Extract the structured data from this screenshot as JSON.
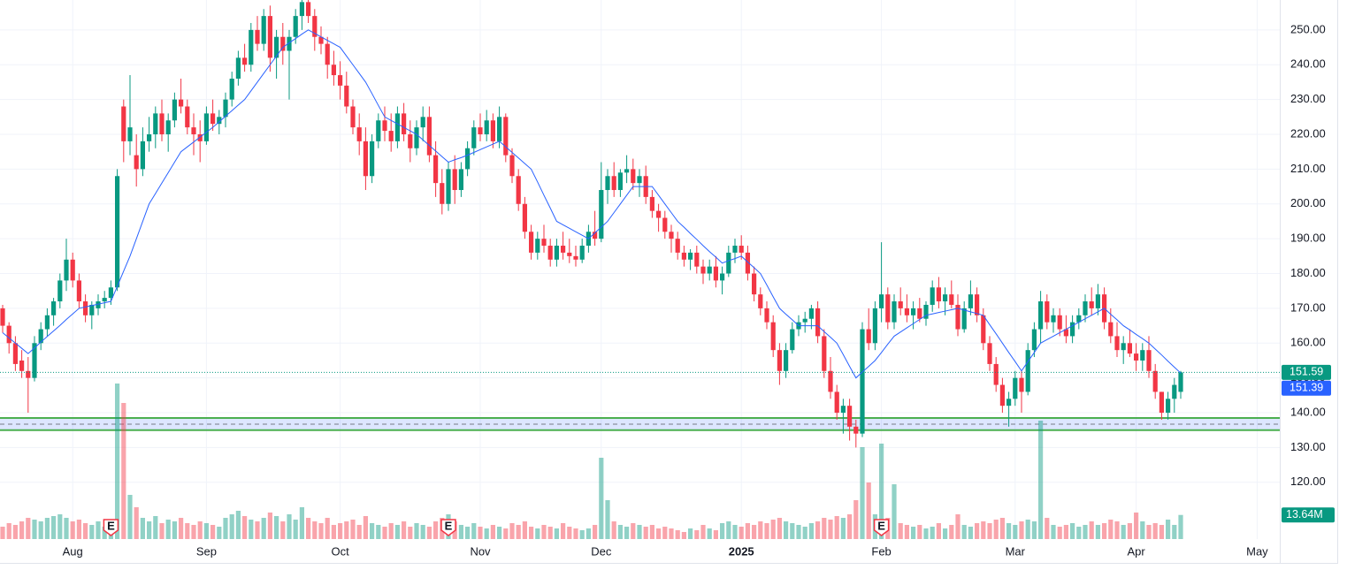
{
  "chart_data": {
    "type": "candlestick",
    "categories": [
      null,
      null,
      null,
      null,
      null,
      null,
      null,
      null,
      null,
      null,
      null,
      "Aug",
      null,
      null,
      null,
      null,
      null,
      null,
      null,
      null,
      null,
      null,
      null,
      null,
      null,
      null,
      null,
      null,
      null,
      null,
      null,
      null,
      "Sep",
      null,
      null,
      null,
      null,
      null,
      null,
      null,
      null,
      null,
      null,
      null,
      null,
      null,
      null,
      null,
      null,
      null,
      null,
      null,
      null,
      "Oct",
      null,
      null,
      null,
      null,
      null,
      null,
      null,
      null,
      null,
      null,
      null,
      null,
      null,
      null,
      null,
      null,
      null,
      null,
      null,
      null,
      null,
      "Nov",
      null,
      null,
      null,
      null,
      null,
      null,
      null,
      null,
      null,
      null,
      null,
      null,
      null,
      null,
      null,
      null,
      null,
      null,
      "Dec",
      null,
      null,
      null,
      null,
      null,
      null,
      null,
      null,
      null,
      null,
      null,
      null,
      null,
      null,
      null,
      null,
      null,
      null,
      null,
      null,
      null,
      "2025",
      null,
      null,
      null,
      null,
      null,
      null,
      null,
      null,
      null,
      null,
      null,
      null,
      null,
      null,
      null,
      null,
      null,
      null,
      null,
      null,
      null,
      "Feb",
      null,
      null,
      null,
      null,
      null,
      null,
      null,
      null,
      null,
      null,
      null,
      null,
      null,
      null,
      null,
      null,
      null,
      null,
      null,
      null,
      "Mar",
      null,
      null,
      null,
      null,
      null,
      null,
      null,
      null,
      null,
      null,
      null,
      null,
      null,
      null,
      null,
      null,
      null,
      null,
      "Apr",
      null,
      null,
      null,
      null,
      null,
      null,
      null,
      null,
      null,
      null,
      null,
      null,
      null,
      null,
      null,
      null,
      null,
      null,
      "May"
    ],
    "open": [
      170,
      165,
      160,
      155,
      152,
      150,
      160,
      164,
      168,
      172,
      178,
      184,
      178,
      172,
      168,
      170,
      172,
      173,
      176,
      228,
      218,
      214,
      210,
      218,
      220,
      226,
      220,
      224,
      230,
      228,
      222,
      220,
      218,
      226,
      223,
      225,
      230,
      236,
      242,
      240,
      250,
      246,
      254,
      242,
      248,
      244,
      248,
      254,
      258,
      254,
      248,
      246,
      240,
      237,
      234,
      228,
      222,
      218,
      208,
      218,
      224,
      221,
      218,
      226,
      220,
      216,
      222,
      225,
      214,
      206,
      200,
      210,
      204,
      210,
      216,
      222,
      220,
      224,
      218,
      225,
      214,
      208,
      200,
      192,
      186,
      190,
      188,
      184,
      188,
      186,
      185,
      184,
      188,
      192,
      190,
      204,
      208,
      204,
      209,
      210,
      206,
      208,
      202,
      198,
      196,
      192,
      190,
      186,
      184,
      186,
      182,
      180,
      182,
      178,
      180,
      186,
      188,
      186,
      180,
      174,
      170,
      166,
      158,
      152,
      158,
      164,
      166,
      167,
      170,
      162,
      152,
      146,
      140,
      142,
      136,
      134,
      164,
      160,
      170,
      174,
      166,
      172,
      170,
      168,
      170,
      167,
      171,
      176,
      172,
      174,
      171,
      164,
      170,
      174,
      168,
      160,
      154,
      148,
      142,
      144,
      150,
      146,
      158,
      164,
      172,
      166,
      168,
      164,
      162,
      166,
      168,
      172,
      170,
      174,
      166,
      162,
      158,
      160,
      157,
      155,
      158,
      152,
      146,
      140,
      144,
      146,
      null,
      null,
      null,
      null,
      null,
      null,
      null,
      null,
      null,
      null,
      null,
      null
    ],
    "high": [
      171,
      166,
      162,
      158,
      156,
      162,
      166,
      170,
      173,
      180,
      190,
      186,
      180,
      174,
      172,
      174,
      175,
      178,
      210,
      230,
      237,
      220,
      222,
      225,
      228,
      230,
      226,
      232,
      236,
      230,
      226,
      224,
      228,
      230,
      227,
      232,
      238,
      244,
      246,
      252,
      254,
      256,
      257,
      250,
      252,
      250,
      256,
      260,
      262,
      256,
      251,
      248,
      244,
      241,
      238,
      230,
      226,
      222,
      220,
      226,
      228,
      226,
      228,
      229,
      224,
      224,
      228,
      228,
      218,
      210,
      212,
      214,
      212,
      218,
      224,
      226,
      227,
      226,
      228,
      226,
      216,
      210,
      202,
      194,
      192,
      194,
      190,
      190,
      192,
      190,
      188,
      190,
      194,
      198,
      212,
      210,
      212,
      210,
      214,
      213,
      210,
      211,
      204,
      200,
      198,
      194,
      192,
      188,
      187,
      188,
      184,
      184,
      185,
      182,
      188,
      190,
      191,
      188,
      182,
      176,
      172,
      168,
      160,
      160,
      166,
      168,
      169,
      171,
      172,
      164,
      156,
      148,
      144,
      144,
      138,
      166,
      170,
      172,
      189,
      176,
      174,
      176,
      174,
      172,
      173,
      172,
      178,
      179,
      176,
      178,
      174,
      172,
      178,
      176,
      170,
      162,
      156,
      150,
      146,
      152,
      152,
      160,
      166,
      175,
      174,
      170,
      170,
      168,
      168,
      170,
      174,
      176,
      177,
      176,
      170,
      166,
      162,
      164,
      160,
      160,
      162,
      154,
      146,
      146,
      150,
      152,
      null,
      null,
      null,
      null,
      null,
      null,
      null,
      null,
      null,
      null,
      null,
      null
    ],
    "low": [
      163,
      157,
      152,
      150,
      140,
      149,
      158,
      162,
      165,
      170,
      175,
      176,
      170,
      166,
      164,
      168,
      170,
      171,
      175,
      212,
      214,
      205,
      208,
      215,
      216,
      218,
      215,
      222,
      226,
      220,
      214,
      212,
      217,
      221,
      220,
      222,
      228,
      234,
      238,
      238,
      244,
      244,
      238,
      236,
      240,
      230,
      246,
      250,
      252,
      244,
      243,
      236,
      234,
      230,
      226,
      220,
      214,
      204,
      206,
      216,
      218,
      215,
      216,
      218,
      212,
      214,
      218,
      212,
      202,
      197,
      198,
      200,
      202,
      208,
      214,
      218,
      218,
      216,
      216,
      212,
      206,
      198,
      190,
      184,
      184,
      186,
      182,
      182,
      184,
      183,
      182,
      183,
      186,
      188,
      189,
      200,
      202,
      202,
      206,
      204,
      202,
      200,
      196,
      192,
      190,
      186,
      184,
      182,
      181,
      180,
      177,
      178,
      176,
      174,
      179,
      183,
      184,
      178,
      172,
      168,
      164,
      156,
      148,
      150,
      157,
      162,
      163,
      164,
      160,
      150,
      144,
      138,
      134,
      132,
      130,
      133,
      158,
      158,
      166,
      164,
      164,
      168,
      166,
      164,
      166,
      165,
      169,
      170,
      168,
      170,
      162,
      163,
      168,
      166,
      158,
      152,
      146,
      140,
      136,
      142,
      140,
      145,
      156,
      160,
      164,
      163,
      162,
      160,
      160,
      164,
      166,
      168,
      168,
      164,
      160,
      156,
      154,
      156,
      152,
      152,
      150,
      144,
      138,
      138,
      140,
      144,
      null,
      null,
      null,
      null,
      null,
      null,
      null,
      null,
      null,
      null,
      null,
      null
    ],
    "close": [
      165,
      160,
      154,
      152,
      150,
      160,
      164,
      168,
      172,
      178,
      184,
      178,
      172,
      168,
      171,
      172,
      173,
      176,
      208,
      218,
      222,
      210,
      218,
      220,
      226,
      220,
      224,
      230,
      228,
      222,
      220,
      218,
      226,
      223,
      225,
      230,
      236,
      242,
      240,
      250,
      246,
      254,
      242,
      248,
      244,
      248,
      254,
      258,
      254,
      248,
      246,
      240,
      237,
      234,
      228,
      222,
      218,
      208,
      218,
      224,
      221,
      218,
      226,
      220,
      216,
      222,
      225,
      214,
      206,
      200,
      210,
      204,
      210,
      216,
      222,
      220,
      224,
      218,
      225,
      214,
      208,
      200,
      192,
      186,
      190,
      188,
      184,
      188,
      186,
      185,
      184,
      188,
      192,
      190,
      204,
      208,
      204,
      209,
      210,
      206,
      208,
      202,
      198,
      196,
      192,
      190,
      186,
      184,
      186,
      182,
      180,
      182,
      178,
      180,
      186,
      188,
      186,
      180,
      174,
      170,
      166,
      158,
      152,
      158,
      164,
      166,
      167,
      170,
      162,
      152,
      146,
      140,
      142,
      136,
      134,
      164,
      160,
      170,
      174,
      166,
      172,
      170,
      168,
      170,
      167,
      171,
      176,
      172,
      174,
      171,
      164,
      170,
      174,
      168,
      160,
      154,
      148,
      142,
      144,
      150,
      146,
      158,
      164,
      172,
      166,
      168,
      164,
      162,
      166,
      168,
      172,
      170,
      174,
      166,
      162,
      158,
      160,
      157,
      155,
      158,
      152,
      146,
      140,
      144,
      148,
      151.59,
      null,
      null,
      null,
      null,
      null,
      null,
      null,
      null,
      null,
      null,
      null,
      null
    ],
    "volume": [
      7,
      9,
      8,
      10,
      12,
      11,
      10,
      12,
      13,
      14,
      12,
      10,
      11,
      9,
      8,
      10,
      7,
      9,
      88,
      77,
      25,
      18,
      12,
      10,
      13,
      9,
      11,
      10,
      12,
      9,
      8,
      10,
      9,
      8,
      7,
      12,
      14,
      16,
      13,
      11,
      10,
      12,
      15,
      13,
      10,
      14,
      11,
      18,
      12,
      10,
      9,
      12,
      8,
      9,
      10,
      11,
      8,
      13,
      9,
      8,
      7,
      9,
      8,
      10,
      7,
      9,
      8,
      7,
      10,
      12,
      14,
      10,
      8,
      7,
      9,
      7,
      6,
      8,
      7,
      6,
      9,
      8,
      10,
      7,
      6,
      8,
      7,
      6,
      9,
      7,
      6,
      5,
      6,
      8,
      46,
      22,
      10,
      8,
      7,
      9,
      8,
      7,
      8,
      6,
      7,
      6,
      5,
      4,
      6,
      5,
      8,
      6,
      5,
      9,
      10,
      8,
      7,
      9,
      8,
      10,
      9,
      11,
      12,
      10,
      9,
      8,
      7,
      9,
      10,
      12,
      11,
      13,
      12,
      14,
      22,
      52,
      32,
      14,
      54,
      12,
      31,
      9,
      8,
      7,
      8,
      6,
      7,
      9,
      6,
      8,
      14,
      8,
      7,
      9,
      10,
      9,
      11,
      12,
      9,
      8,
      10,
      11,
      10,
      67,
      12,
      8,
      7,
      8,
      9,
      7,
      8,
      10,
      8,
      9,
      11,
      10,
      8,
      9,
      15,
      10,
      8,
      9,
      8,
      11,
      8,
      13.64,
      null,
      null,
      null,
      null,
      null,
      null,
      null,
      null,
      null,
      null,
      null,
      null
    ],
    "last_volume_label": "13.64M",
    "ma": [
      163,
      161.5,
      160,
      158.5,
      157,
      158.6,
      160.3,
      161.9,
      163.5,
      165.1,
      166.8,
      168.4,
      170,
      170.4,
      170.8,
      171.2,
      171.6,
      172,
      176.3,
      180.7,
      185,
      190,
      195,
      200,
      203,
      206,
      209,
      212,
      215,
      216.4,
      217.8,
      219.2,
      220.6,
      222,
      223.6,
      225.2,
      226.8,
      228.4,
      230,
      232.5,
      235,
      237.5,
      240,
      242.5,
      245,
      246.3,
      247.5,
      248.8,
      250,
      249,
      248,
      247,
      246,
      245,
      242.5,
      240,
      237.5,
      235,
      231.7,
      228.3,
      225,
      224,
      223,
      222,
      221,
      220,
      218.4,
      216.8,
      215.2,
      213.6,
      212,
      212.7,
      213.3,
      214,
      214.8,
      215.6,
      216.4,
      217.2,
      218,
      216.4,
      214.8,
      213.2,
      211.6,
      210,
      206.3,
      202.5,
      198.8,
      195,
      194,
      193,
      192,
      191,
      190,
      191.7,
      193.3,
      195,
      197.5,
      200,
      202.5,
      205,
      205,
      205,
      205,
      202.5,
      200,
      197.5,
      195,
      193.3,
      191.5,
      189.8,
      188,
      186.3,
      184.7,
      183,
      183.7,
      184.3,
      185,
      183.3,
      181.7,
      180,
      176.7,
      173.3,
      170,
      168.3,
      166.7,
      165,
      165,
      165,
      165,
      163.3,
      161.7,
      160,
      156.7,
      153.3,
      150,
      151.7,
      153.3,
      155,
      157.3,
      159.7,
      162,
      163.2,
      164.4,
      165.6,
      166.8,
      168,
      168.4,
      168.8,
      169.2,
      169.6,
      170,
      169.5,
      169,
      168.5,
      168,
      165.3,
      162.7,
      160,
      157.3,
      154.7,
      152,
      154.7,
      157.3,
      160,
      161,
      162,
      163,
      164,
      165,
      166,
      167,
      168,
      169,
      170,
      168.3,
      166.7,
      165,
      163.8,
      162.5,
      161.3,
      160,
      158.3,
      156.6,
      154.8,
      153.1,
      151.39,
      null,
      null,
      null,
      null,
      null,
      null,
      null,
      null,
      null,
      null,
      null,
      null
    ],
    "up_color": "#089981",
    "down_color": "#f23645",
    "ma_color": "#2962ff",
    "ylim": [
      103.7,
      258.6
    ],
    "yticks": [
      {
        "value": 120,
        "label": "120.00"
      },
      {
        "value": 130,
        "label": "130.00"
      },
      {
        "value": 140,
        "label": "140.00"
      },
      {
        "value": 150,
        "label": "150.00"
      },
      {
        "value": 160,
        "label": "160.00"
      },
      {
        "value": 170,
        "label": "170.00"
      },
      {
        "value": 180,
        "label": "180.00"
      },
      {
        "value": 190,
        "label": "190.00"
      },
      {
        "value": 200,
        "label": "200.00"
      },
      {
        "value": 210,
        "label": "210.00"
      },
      {
        "value": 220,
        "label": "220.00"
      },
      {
        "value": 230,
        "label": "230.00"
      },
      {
        "value": 240,
        "label": "240.00"
      },
      {
        "value": 250,
        "label": "250.00"
      }
    ],
    "volume_ylim": [
      0,
      305
    ],
    "zones": [
      {
        "low": 135,
        "high": 138.5,
        "mid": 136.7
      }
    ],
    "events": [
      {
        "x": 17,
        "label": "E"
      },
      {
        "x": 70,
        "label": "E"
      },
      {
        "x": 138,
        "label": "E"
      }
    ],
    "grid": true
  }
}
